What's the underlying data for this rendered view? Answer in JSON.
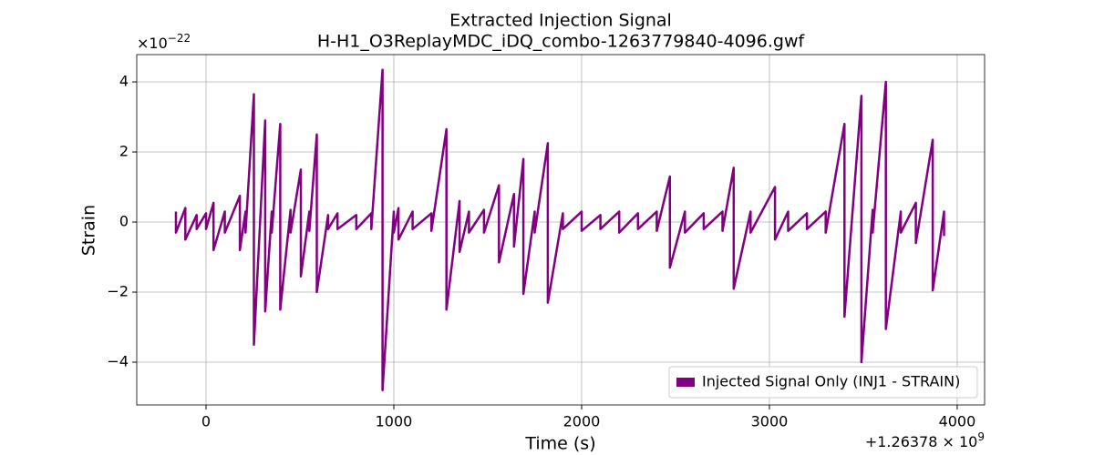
{
  "chart_data": {
    "type": "line",
    "title": [
      "Extracted Injection Signal",
      "H-H1_O3ReplayMDC_iDQ_combo-1263779840-4096.gwf"
    ],
    "xlabel": "Time (s)",
    "ylabel": "Strain",
    "y_multiplier": {
      "base": "×10",
      "exponent": "−22"
    },
    "x_offset": {
      "base": "+1.26378 × 10",
      "exponent": "9"
    },
    "xlim": [
      -369,
      4146
    ],
    "ylim": [
      -5.22,
      4.78
    ],
    "xticks": [
      0,
      1000,
      2000,
      3000,
      4000
    ],
    "yticks": [
      {
        "value": -4,
        "label": "−4"
      },
      {
        "value": -2,
        "label": "−2"
      },
      0,
      2,
      4
    ],
    "grid": true,
    "legend": "lower right",
    "series": [
      {
        "name": "Injected Signal Only (INJ1 - STRAIN)",
        "color": "#800080",
        "x": [
          -160,
          -160,
          -110,
          -110,
          -50,
          -50,
          0,
          0,
          40,
          40,
          100,
          100,
          180,
          180,
          210,
          210,
          255,
          255,
          315,
          315,
          350,
          350,
          395,
          395,
          450,
          450,
          505,
          505,
          550,
          550,
          590,
          590,
          650,
          650,
          700,
          700,
          800,
          800,
          880,
          880,
          940,
          940,
          1000,
          1000,
          1025,
          1025,
          1100,
          1100,
          1200,
          1200,
          1280,
          1280,
          1350,
          1350,
          1400,
          1400,
          1480,
          1480,
          1560,
          1560,
          1640,
          1640,
          1690,
          1690,
          1750,
          1750,
          1820,
          1820,
          1900,
          1900,
          2000,
          2000,
          2100,
          2100,
          2200,
          2200,
          2300,
          2300,
          2400,
          2400,
          2470,
          2470,
          2550,
          2550,
          2650,
          2650,
          2750,
          2750,
          2810,
          2810,
          2900,
          2900,
          3030,
          3030,
          3100,
          3100,
          3200,
          3200,
          3300,
          3300,
          3400,
          3400,
          3490,
          3490,
          3550,
          3550,
          3620,
          3620,
          3700,
          3700,
          3780,
          3780,
          3870,
          3870,
          3930,
          3930
        ],
        "values": [
          0.3,
          -0.3,
          0.4,
          -0.5,
          0.2,
          -0.2,
          0.25,
          -0.2,
          0.55,
          -0.8,
          0.3,
          -0.3,
          0.75,
          -0.8,
          0.3,
          -0.3,
          3.65,
          -3.5,
          2.9,
          -2.55,
          0.3,
          -0.3,
          2.8,
          -2.5,
          0.35,
          -0.3,
          1.5,
          -1.55,
          0.3,
          -0.25,
          2.5,
          -2.0,
          0.2,
          -0.2,
          0.25,
          -0.2,
          0.2,
          -0.2,
          0.25,
          -0.2,
          4.35,
          -4.8,
          0.3,
          -0.3,
          0.4,
          -0.5,
          0.3,
          -0.2,
          0.25,
          -0.25,
          2.65,
          -2.5,
          0.6,
          -0.85,
          0.3,
          -0.3,
          0.35,
          -0.3,
          1.05,
          -1.15,
          0.8,
          -0.7,
          1.8,
          -2.05,
          0.3,
          -0.3,
          2.25,
          -2.3,
          0.25,
          -0.2,
          0.3,
          -0.25,
          0.2,
          -0.2,
          0.3,
          -0.3,
          0.25,
          -0.2,
          0.3,
          -0.25,
          1.3,
          -1.3,
          0.3,
          -0.3,
          0.25,
          -0.2,
          0.3,
          -0.25,
          1.55,
          -1.9,
          0.3,
          -0.3,
          1.0,
          -0.5,
          0.3,
          -0.25,
          0.25,
          -0.2,
          0.3,
          -0.3,
          2.8,
          -2.7,
          3.6,
          -4.0,
          0.35,
          -0.3,
          4.0,
          -3.05,
          0.3,
          -0.3,
          0.55,
          -0.6,
          2.35,
          -1.95,
          0.3,
          -0.4
        ]
      }
    ]
  }
}
